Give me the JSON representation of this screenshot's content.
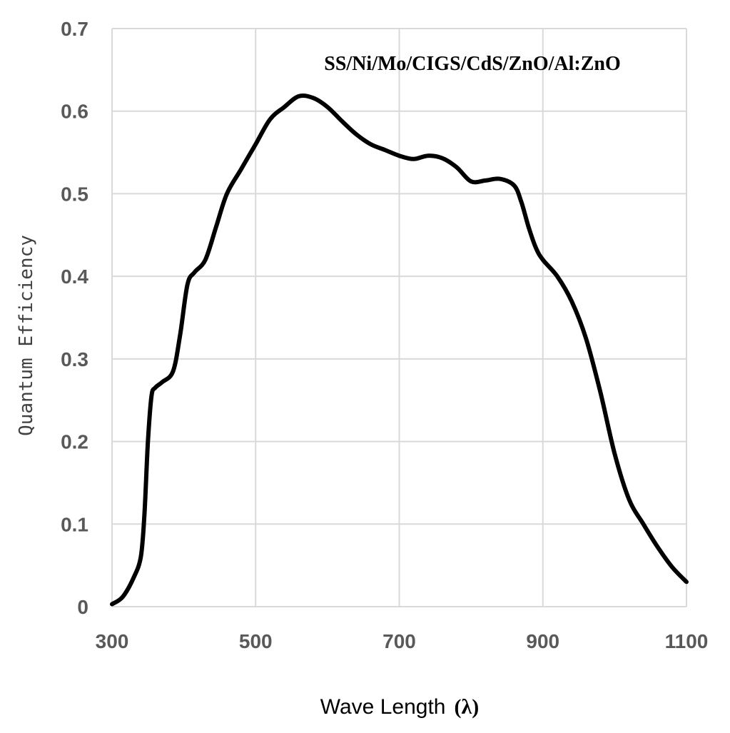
{
  "chart_data": {
    "type": "line",
    "title": "",
    "annotation": "SS/Ni/Mo/CIGS/CdS/ZnO/Al:ZnO",
    "xlabel": "Wave Length",
    "xlabel_symbol": "(λ)",
    "ylabel": "Quantum Efficiency",
    "xlim": [
      300,
      1100
    ],
    "ylim": [
      0,
      0.7
    ],
    "x_ticks": [
      300,
      500,
      700,
      900,
      1100
    ],
    "x_tick_labels": [
      "300",
      "500",
      "700",
      "900",
      "1100"
    ],
    "y_ticks": [
      0,
      0.1,
      0.2,
      0.3,
      0.4,
      0.5,
      0.6,
      0.7
    ],
    "y_tick_labels": [
      "0",
      "0.1",
      "0.2",
      "0.3",
      "0.4",
      "0.5",
      "0.6",
      "0.7"
    ],
    "grid": true,
    "line_color": "#000000",
    "grid_color": "#d9d9d9",
    "series": [
      {
        "x": [
          300,
          315,
          330,
          340,
          345,
          350,
          355,
          360,
          370,
          385,
          395,
          405,
          415,
          430,
          445,
          460,
          480,
          500,
          520,
          540,
          560,
          580,
          600,
          620,
          640,
          660,
          680,
          700,
          720,
          740,
          760,
          780,
          800,
          820,
          840,
          860,
          870,
          880,
          890,
          900,
          920,
          940,
          960,
          980,
          1000,
          1020,
          1040,
          1060,
          1080,
          1100
        ],
        "y": [
          0.003,
          0.012,
          0.035,
          0.06,
          0.11,
          0.2,
          0.255,
          0.265,
          0.272,
          0.285,
          0.33,
          0.39,
          0.405,
          0.42,
          0.46,
          0.5,
          0.53,
          0.56,
          0.59,
          0.605,
          0.618,
          0.616,
          0.605,
          0.588,
          0.572,
          0.56,
          0.553,
          0.546,
          0.542,
          0.546,
          0.543,
          0.532,
          0.515,
          0.516,
          0.518,
          0.51,
          0.49,
          0.46,
          0.435,
          0.42,
          0.4,
          0.37,
          0.325,
          0.26,
          0.185,
          0.13,
          0.1,
          0.072,
          0.048,
          0.03
        ]
      }
    ]
  }
}
